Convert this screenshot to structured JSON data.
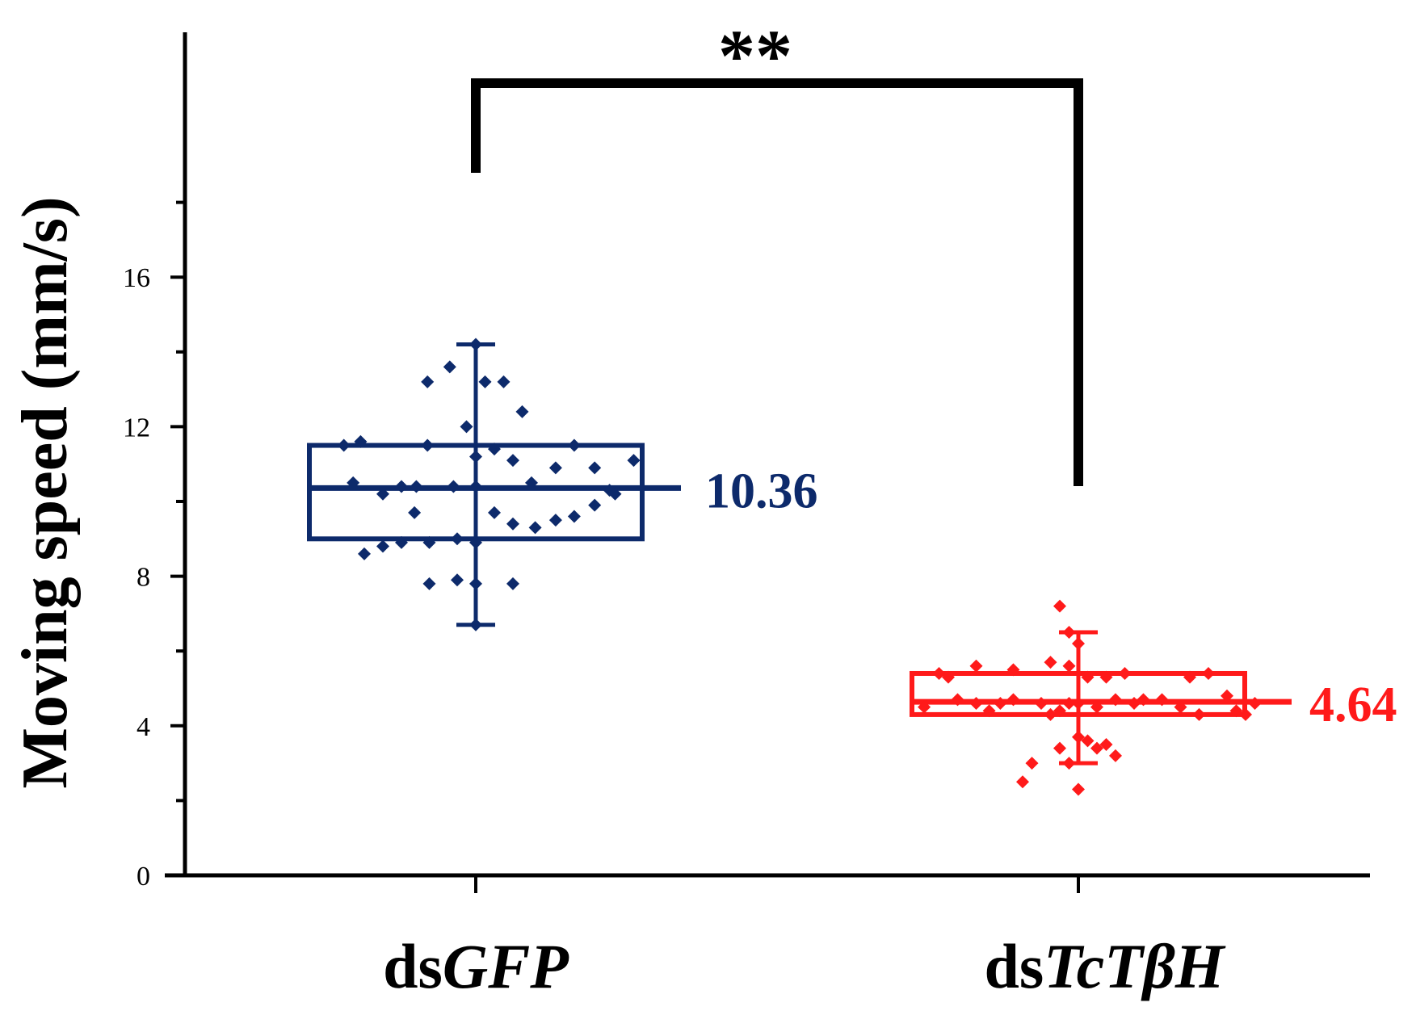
{
  "chart_data": {
    "type": "box",
    "ylabel": "Moving speed (mm/s)",
    "ylim": [
      0,
      18
    ],
    "yticks": [
      0,
      4,
      8,
      12,
      16
    ],
    "legend": "none",
    "grid": false,
    "significance": {
      "label": "**",
      "between": [
        "dsGFP",
        "dsTcTβH"
      ]
    },
    "groups": [
      {
        "name_prefix": "ds",
        "name_italic": "GFP",
        "color": "#0d2a6b",
        "median": 10.36,
        "median_label": "10.36",
        "q1": 9.0,
        "q3": 11.5,
        "whisker_low": 6.7,
        "whisker_high": 14.2,
        "points": [
          [
            -0.71,
            11.5
          ],
          [
            -0.62,
            11.6
          ],
          [
            -0.66,
            10.5
          ],
          [
            -0.5,
            10.2
          ],
          [
            -0.4,
            10.4
          ],
          [
            -0.32,
            10.4
          ],
          [
            -0.26,
            11.5
          ],
          [
            -0.12,
            10.4
          ],
          [
            0.0,
            11.2
          ],
          [
            0.0,
            10.4
          ],
          [
            0.1,
            11.4
          ],
          [
            0.2,
            11.1
          ],
          [
            0.3,
            10.5
          ],
          [
            0.43,
            10.9
          ],
          [
            0.53,
            11.5
          ],
          [
            0.64,
            10.9
          ],
          [
            0.75,
            10.2
          ],
          [
            0.85,
            11.1
          ],
          [
            0.72,
            10.3
          ],
          [
            -0.6,
            8.6
          ],
          [
            -0.5,
            8.8
          ],
          [
            -0.4,
            8.9
          ],
          [
            -0.25,
            8.9
          ],
          [
            -0.1,
            9.0
          ],
          [
            0.0,
            8.9
          ],
          [
            -0.33,
            9.7
          ],
          [
            0.1,
            9.7
          ],
          [
            0.2,
            9.4
          ],
          [
            0.32,
            9.3
          ],
          [
            0.43,
            9.5
          ],
          [
            0.53,
            9.6
          ],
          [
            0.64,
            9.9
          ],
          [
            -0.25,
            7.8
          ],
          [
            -0.1,
            7.9
          ],
          [
            0.0,
            7.8
          ],
          [
            0.2,
            7.8
          ],
          [
            0.0,
            6.7
          ],
          [
            -0.26,
            13.2
          ],
          [
            -0.14,
            13.6
          ],
          [
            0.05,
            13.2
          ],
          [
            0.15,
            13.2
          ],
          [
            -0.05,
            12.0
          ],
          [
            0.25,
            12.4
          ],
          [
            0.0,
            14.2
          ]
        ]
      },
      {
        "name_prefix": "ds",
        "name_italic": "TcTβH",
        "color": "#ff1a1a",
        "median": 4.64,
        "median_label": "4.64",
        "q1": 4.3,
        "q3": 5.4,
        "whisker_low": 3.0,
        "whisker_high": 6.5,
        "points": [
          [
            -0.83,
            4.5
          ],
          [
            -0.75,
            5.4
          ],
          [
            -0.7,
            5.3
          ],
          [
            -0.65,
            4.7
          ],
          [
            -0.55,
            4.6
          ],
          [
            -0.48,
            4.4
          ],
          [
            -0.42,
            4.6
          ],
          [
            -0.55,
            5.6
          ],
          [
            -0.35,
            4.7
          ],
          [
            -0.2,
            4.6
          ],
          [
            -0.35,
            5.5
          ],
          [
            -0.15,
            5.7
          ],
          [
            -0.1,
            4.4
          ],
          [
            -0.05,
            4.6
          ],
          [
            0.0,
            4.6
          ],
          [
            0.05,
            5.3
          ],
          [
            0.1,
            4.5
          ],
          [
            0.15,
            5.3
          ],
          [
            0.2,
            4.7
          ],
          [
            0.25,
            5.4
          ],
          [
            0.3,
            4.6
          ],
          [
            0.35,
            4.7
          ],
          [
            0.45,
            4.7
          ],
          [
            0.55,
            4.5
          ],
          [
            0.6,
            5.3
          ],
          [
            0.65,
            4.3
          ],
          [
            0.7,
            5.4
          ],
          [
            0.8,
            4.8
          ],
          [
            0.85,
            4.4
          ],
          [
            0.9,
            4.3
          ],
          [
            0.95,
            4.6
          ],
          [
            -0.15,
            4.3
          ],
          [
            -0.1,
            3.4
          ],
          [
            -0.05,
            3.0
          ],
          [
            0.0,
            3.7
          ],
          [
            0.05,
            3.6
          ],
          [
            0.1,
            3.4
          ],
          [
            0.15,
            3.5
          ],
          [
            0.2,
            3.2
          ],
          [
            -0.25,
            3.0
          ],
          [
            -0.3,
            2.5
          ],
          [
            0.0,
            2.3
          ],
          [
            0.0,
            6.2
          ],
          [
            -0.05,
            6.5
          ],
          [
            -0.1,
            7.2
          ],
          [
            -0.05,
            5.6
          ]
        ]
      }
    ]
  }
}
